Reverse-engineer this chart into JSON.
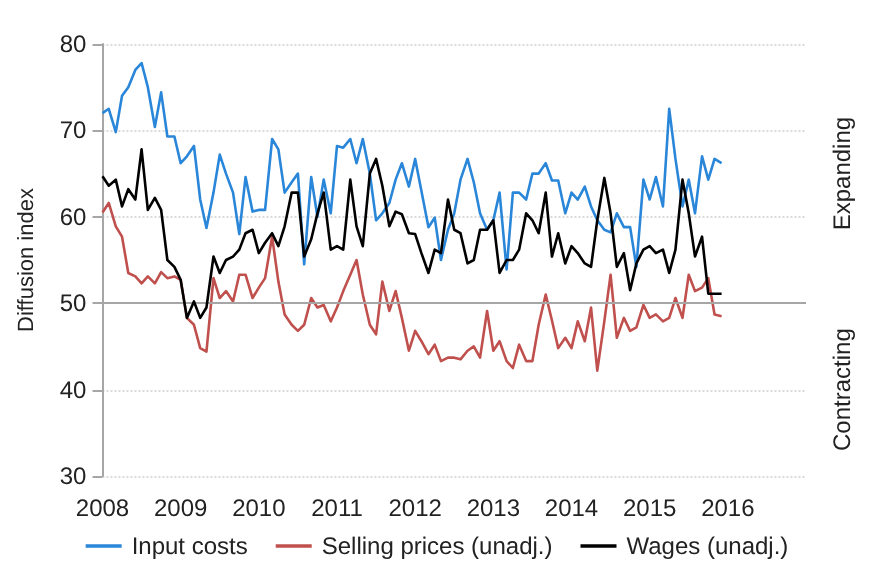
{
  "chart_data": {
    "type": "line",
    "ylabel": "Diffusion index",
    "xlim": [
      2008,
      2017
    ],
    "xticks": [
      2008,
      2009,
      2010,
      2011,
      2012,
      2013,
      2014,
      2015,
      2016
    ],
    "ylim": [
      30,
      80
    ],
    "yticks": [
      30,
      40,
      50,
      60,
      70,
      80
    ],
    "grid": "y",
    "legend": "bottom",
    "annotations": [
      "Expanding",
      "Contracting"
    ],
    "ref_lines": [
      {
        "axis": "y",
        "value": 50,
        "color": "#a6a6a6"
      }
    ],
    "x": [
      2008,
      2008.08,
      2008.17,
      2008.25,
      2008.33,
      2008.42,
      2008.5,
      2008.58,
      2008.67,
      2008.75,
      2008.83,
      2008.92,
      2009,
      2009.08,
      2009.17,
      2009.25,
      2009.33,
      2009.42,
      2009.5,
      2009.58,
      2009.67,
      2009.75,
      2009.83,
      2009.92,
      2010,
      2010.08,
      2010.17,
      2010.25,
      2010.33,
      2010.42,
      2010.5,
      2010.58,
      2010.67,
      2010.75,
      2010.83,
      2010.92,
      2011,
      2011.08,
      2011.17,
      2011.25,
      2011.33,
      2011.42,
      2011.5,
      2011.58,
      2011.67,
      2011.75,
      2011.83,
      2011.92,
      2012,
      2012.08,
      2012.17,
      2012.25,
      2012.33,
      2012.42,
      2012.5,
      2012.58,
      2012.67,
      2012.75,
      2012.83,
      2012.92,
      2013,
      2013.08,
      2013.17,
      2013.25,
      2013.33,
      2013.42,
      2013.5,
      2013.58,
      2013.67,
      2013.75,
      2013.83,
      2013.92,
      2014,
      2014.08,
      2014.17,
      2014.25,
      2014.33,
      2014.42,
      2014.5,
      2014.58,
      2014.67,
      2014.75,
      2014.83,
      2014.92,
      2015,
      2015.08,
      2015.17,
      2015.25,
      2015.33,
      2015.42,
      2015.5,
      2015.58,
      2015.67,
      2015.75,
      2015.83,
      2015.92
    ],
    "series": [
      {
        "name": "Input costs",
        "color": "#2a86d8",
        "values": [
          72,
          72.5,
          69.8,
          74,
          75,
          77,
          77.8,
          75,
          70.4,
          74.4,
          69.3,
          69.3,
          66.2,
          67,
          68.2,
          62,
          58.7,
          62.8,
          67.2,
          65,
          62.8,
          58,
          64.6,
          60.6,
          60.8,
          60.8,
          69,
          67.8,
          62.8,
          64,
          65,
          54.5,
          64.6,
          60,
          64.3,
          60.4,
          68.2,
          68,
          69,
          66.2,
          69,
          65,
          59.6,
          60.4,
          61.6,
          64.3,
          66.2,
          63.5,
          66.7,
          63,
          58.8,
          59.9,
          55,
          58.5,
          60.4,
          64.3,
          66.7,
          64,
          60.4,
          58.5,
          59.6,
          62.8,
          53.9,
          62.8,
          62.8,
          62,
          65,
          65,
          66.2,
          64.2,
          64.2,
          60.4,
          62.8,
          62,
          63.5,
          61.2,
          59.6,
          58.5,
          58.2,
          60.4,
          58.8,
          58.8,
          54.2,
          64.3,
          62,
          64.6,
          61.2,
          72.5,
          66.7,
          61.2,
          64.3,
          60.4,
          67,
          64.3,
          66.7,
          66.2
        ]
      },
      {
        "name": "Selling prices (unadj.)",
        "color": "#c0504d",
        "values": [
          60.5,
          61.6,
          58.9,
          57.7,
          53.5,
          53.1,
          52.3,
          53.1,
          52.3,
          53.6,
          52.9,
          53.1,
          52.7,
          48.3,
          47.5,
          44.8,
          44.4,
          52.9,
          50.6,
          51.4,
          50.2,
          53.3,
          53.3,
          50.6,
          51.8,
          52.9,
          57.7,
          52.5,
          48.7,
          47.5,
          46.8,
          47.5,
          50.6,
          49.5,
          49.8,
          47.9,
          49.5,
          51.4,
          53.3,
          55,
          51,
          47.5,
          46.4,
          52.5,
          49.1,
          51.4,
          48.3,
          44.5,
          46.8,
          45.6,
          44.1,
          45.2,
          43.3,
          43.7,
          43.7,
          43.5,
          44.5,
          45,
          43.7,
          49.1,
          44.5,
          45.6,
          43.3,
          42.5,
          45.2,
          43.3,
          43.3,
          47.5,
          51,
          48,
          44.8,
          46,
          44.8,
          47.9,
          45.6,
          49.5,
          42.2,
          47.9,
          53.3,
          46,
          48.3,
          46.8,
          47.2,
          49.8,
          48.3,
          48.7,
          47.9,
          48.3,
          50.6,
          48.3,
          53.3,
          51.4,
          51.8,
          52.9,
          48.7,
          48.5
        ]
      },
      {
        "name": "Wages (unadj.)",
        "color": "#000000",
        "values": [
          64.7,
          63.6,
          64.3,
          61.2,
          63.2,
          62,
          67.8,
          60.8,
          62.2,
          60.8,
          55,
          54.2,
          52.7,
          48.3,
          50.2,
          48.3,
          49.5,
          55.4,
          53.5,
          55,
          55.4,
          56.2,
          58.1,
          58.5,
          55.8,
          57,
          58.1,
          56.6,
          58.9,
          62.8,
          62.8,
          55.4,
          57.4,
          60.4,
          62.8,
          56.2,
          56.6,
          56.2,
          64.3,
          58.9,
          56.6,
          65,
          66.7,
          63.6,
          58.9,
          60.6,
          60.3,
          58.1,
          58,
          55.8,
          53.5,
          56.2,
          55.8,
          62,
          58.5,
          58.1,
          54.6,
          55,
          58.5,
          58.5,
          59.6,
          53.5,
          55,
          55,
          56.2,
          60.4,
          59.6,
          58.1,
          62.8,
          55.4,
          58.1,
          54.6,
          56.6,
          55.8,
          54.6,
          54.2,
          59.6,
          64.5,
          60.4,
          54.2,
          55.8,
          51.5,
          54.6,
          56.2,
          56.6,
          55.8,
          56.2,
          53.5,
          56.2,
          64.3,
          60.4,
          55.4,
          57.7,
          51.1,
          51.1,
          51.1
        ]
      }
    ]
  }
}
